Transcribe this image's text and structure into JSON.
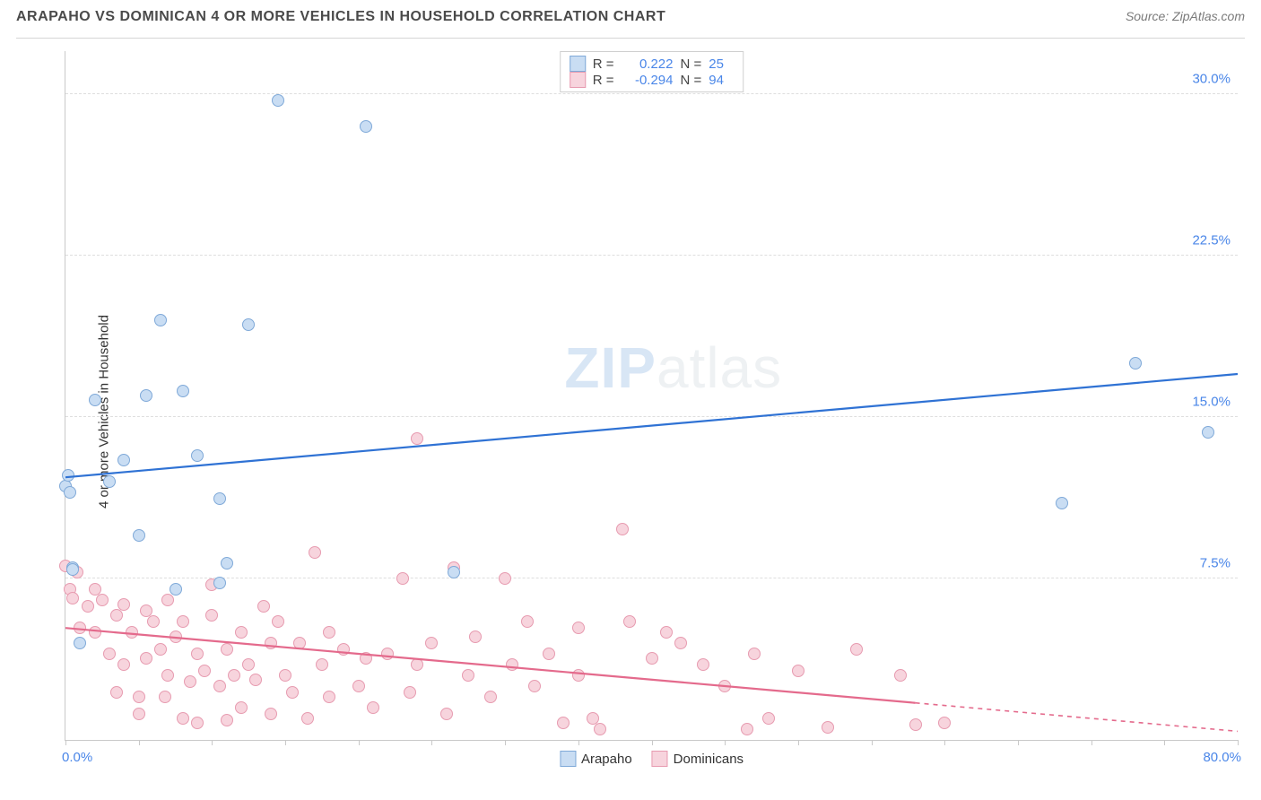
{
  "title": "ARAPAHO VS DOMINICAN 4 OR MORE VEHICLES IN HOUSEHOLD CORRELATION CHART",
  "source": "Source: ZipAtlas.com",
  "ylabel": "4 or more Vehicles in Household",
  "watermark_zip": "ZIP",
  "watermark_atlas": "atlas",
  "xlim": [
    0,
    80
  ],
  "ylim": [
    0,
    32
  ],
  "x_min_label": "0.0%",
  "x_max_label": "80.0%",
  "y_gridlines": [
    {
      "v": 7.5,
      "label": "7.5%"
    },
    {
      "v": 15.0,
      "label": "15.0%"
    },
    {
      "v": 22.5,
      "label": "22.5%"
    },
    {
      "v": 30.0,
      "label": "30.0%"
    }
  ],
  "x_ticks": [
    0,
    5,
    10,
    15,
    20,
    25,
    30,
    35,
    40,
    45,
    50,
    55,
    60,
    65,
    70,
    75,
    80
  ],
  "series": {
    "arapaho": {
      "label": "Arapaho",
      "fill": "#c9ddf3",
      "stroke": "#7fa9d8",
      "line_color": "#2f72d4",
      "r_label": "R =",
      "r_value": "0.222",
      "n_label": "N =",
      "n_value": "25",
      "trend": {
        "x1": 0,
        "y1": 12.2,
        "x2": 80,
        "y2": 17.0,
        "solid_until_x": 80
      },
      "points": [
        [
          0.0,
          11.8
        ],
        [
          0.3,
          11.5
        ],
        [
          0.5,
          8.0
        ],
        [
          0.5,
          7.9
        ],
        [
          1.0,
          4.5
        ],
        [
          4.0,
          13.0
        ],
        [
          5.0,
          9.5
        ],
        [
          5.5,
          16.0
        ],
        [
          6.5,
          19.5
        ],
        [
          8.0,
          16.2
        ],
        [
          9.0,
          13.2
        ],
        [
          10.5,
          7.3
        ],
        [
          10.5,
          11.2
        ],
        [
          12.5,
          19.3
        ],
        [
          14.5,
          29.7
        ],
        [
          20.5,
          28.5
        ],
        [
          26.5,
          7.8
        ],
        [
          68.0,
          11.0
        ],
        [
          73.0,
          17.5
        ],
        [
          78.0,
          14.3
        ],
        [
          2.0,
          15.8
        ],
        [
          3.0,
          12.0
        ],
        [
          7.5,
          7.0
        ],
        [
          11.0,
          8.2
        ],
        [
          0.2,
          12.3
        ]
      ]
    },
    "dominicans": {
      "label": "Dominicans",
      "fill": "#f7d4dd",
      "stroke": "#e79bb0",
      "line_color": "#e46a8c",
      "r_label": "R =",
      "r_value": "-0.294",
      "n_label": "N =",
      "n_value": "94",
      "trend": {
        "x1": 0,
        "y1": 5.2,
        "x2": 80,
        "y2": 0.4,
        "solid_until_x": 58
      },
      "points": [
        [
          0.0,
          8.1
        ],
        [
          0.3,
          7.0
        ],
        [
          0.5,
          6.6
        ],
        [
          0.8,
          7.8
        ],
        [
          1.0,
          5.2
        ],
        [
          1.5,
          6.2
        ],
        [
          2.0,
          7.0
        ],
        [
          2.0,
          5.0
        ],
        [
          2.5,
          6.5
        ],
        [
          3.0,
          4.0
        ],
        [
          3.5,
          5.8
        ],
        [
          3.5,
          2.2
        ],
        [
          4.0,
          6.3
        ],
        [
          4.0,
          3.5
        ],
        [
          4.5,
          5.0
        ],
        [
          5.0,
          1.2
        ],
        [
          5.0,
          2.0
        ],
        [
          5.5,
          3.8
        ],
        [
          5.5,
          6.0
        ],
        [
          6.0,
          5.5
        ],
        [
          6.5,
          4.2
        ],
        [
          6.8,
          2.0
        ],
        [
          7.0,
          6.5
        ],
        [
          7.0,
          3.0
        ],
        [
          7.5,
          4.8
        ],
        [
          8.0,
          1.0
        ],
        [
          8.0,
          5.5
        ],
        [
          8.5,
          2.7
        ],
        [
          9.0,
          4.0
        ],
        [
          9.0,
          0.8
        ],
        [
          9.5,
          3.2
        ],
        [
          10.0,
          5.8
        ],
        [
          10.0,
          7.2
        ],
        [
          10.5,
          2.5
        ],
        [
          11.0,
          4.2
        ],
        [
          11.0,
          0.9
        ],
        [
          11.5,
          3.0
        ],
        [
          12.0,
          5.0
        ],
        [
          12.0,
          1.5
        ],
        [
          12.5,
          3.5
        ],
        [
          13.0,
          2.8
        ],
        [
          13.5,
          6.2
        ],
        [
          14.0,
          4.5
        ],
        [
          14.0,
          1.2
        ],
        [
          14.5,
          5.5
        ],
        [
          15.0,
          3.0
        ],
        [
          15.5,
          2.2
        ],
        [
          16.0,
          4.5
        ],
        [
          16.5,
          1.0
        ],
        [
          17.0,
          8.7
        ],
        [
          17.5,
          3.5
        ],
        [
          18.0,
          2.0
        ],
        [
          18.0,
          5.0
        ],
        [
          19.0,
          4.2
        ],
        [
          20.0,
          2.5
        ],
        [
          20.5,
          3.8
        ],
        [
          21.0,
          1.5
        ],
        [
          22.0,
          4.0
        ],
        [
          23.0,
          7.5
        ],
        [
          23.5,
          2.2
        ],
        [
          24.0,
          3.5
        ],
        [
          24.0,
          14.0
        ],
        [
          25.0,
          4.5
        ],
        [
          26.0,
          1.2
        ],
        [
          26.5,
          8.0
        ],
        [
          27.5,
          3.0
        ],
        [
          28.0,
          4.8
        ],
        [
          29.0,
          2.0
        ],
        [
          30.0,
          7.5
        ],
        [
          30.5,
          3.5
        ],
        [
          31.5,
          5.5
        ],
        [
          32.0,
          2.5
        ],
        [
          33.0,
          4.0
        ],
        [
          34.0,
          0.8
        ],
        [
          35.0,
          5.2
        ],
        [
          35.0,
          3.0
        ],
        [
          36.0,
          1.0
        ],
        [
          36.5,
          0.5
        ],
        [
          38.0,
          9.8
        ],
        [
          38.5,
          5.5
        ],
        [
          40.0,
          3.8
        ],
        [
          41.0,
          5.0
        ],
        [
          42.0,
          4.5
        ],
        [
          43.5,
          3.5
        ],
        [
          45.0,
          2.5
        ],
        [
          46.5,
          0.5
        ],
        [
          47.0,
          4.0
        ],
        [
          48.0,
          1.0
        ],
        [
          50.0,
          3.2
        ],
        [
          52.0,
          0.6
        ],
        [
          54.0,
          4.2
        ],
        [
          57.0,
          3.0
        ],
        [
          58.0,
          0.7
        ],
        [
          60.0,
          0.8
        ]
      ]
    }
  }
}
